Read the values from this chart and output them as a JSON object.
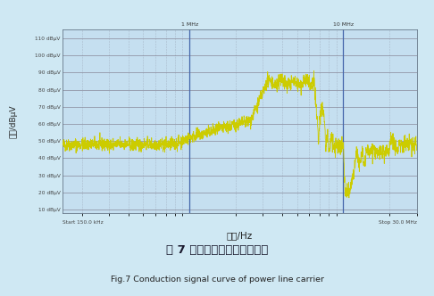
{
  "bg_color": "#cfe8f3",
  "plot_bg_color": "#c5dff0",
  "grid_color_major": "#888899",
  "grid_color_minor": "#aabbcc",
  "line_color": "#cccc00",
  "title_cn": "图 7 电力线载波传导信号曲线",
  "title_en": "Fig.7 Conduction signal curve of power line carrier",
  "xlabel": "频率/Hz",
  "ylabel": "电压/dBμV",
  "start_label": "Start 150.0 kHz",
  "stop_label": "Stop 30.0 MHz",
  "label_1mhz": "1 MHz",
  "label_10mhz": "10 MHz",
  "ytick_vals": [
    10,
    20,
    30,
    40,
    50,
    60,
    70,
    80,
    90,
    100,
    110
  ],
  "ytick_labels": [
    "10 dBμV",
    "20 dBμV",
    "30 dBμV",
    "40 dBμV",
    "50 dBμV",
    "60 dBμV",
    "70 dBμV",
    "80 dBμV",
    "90 dBμV",
    "100 dBμV",
    "110 dBμV"
  ],
  "ymin": 8,
  "ymax": 115
}
